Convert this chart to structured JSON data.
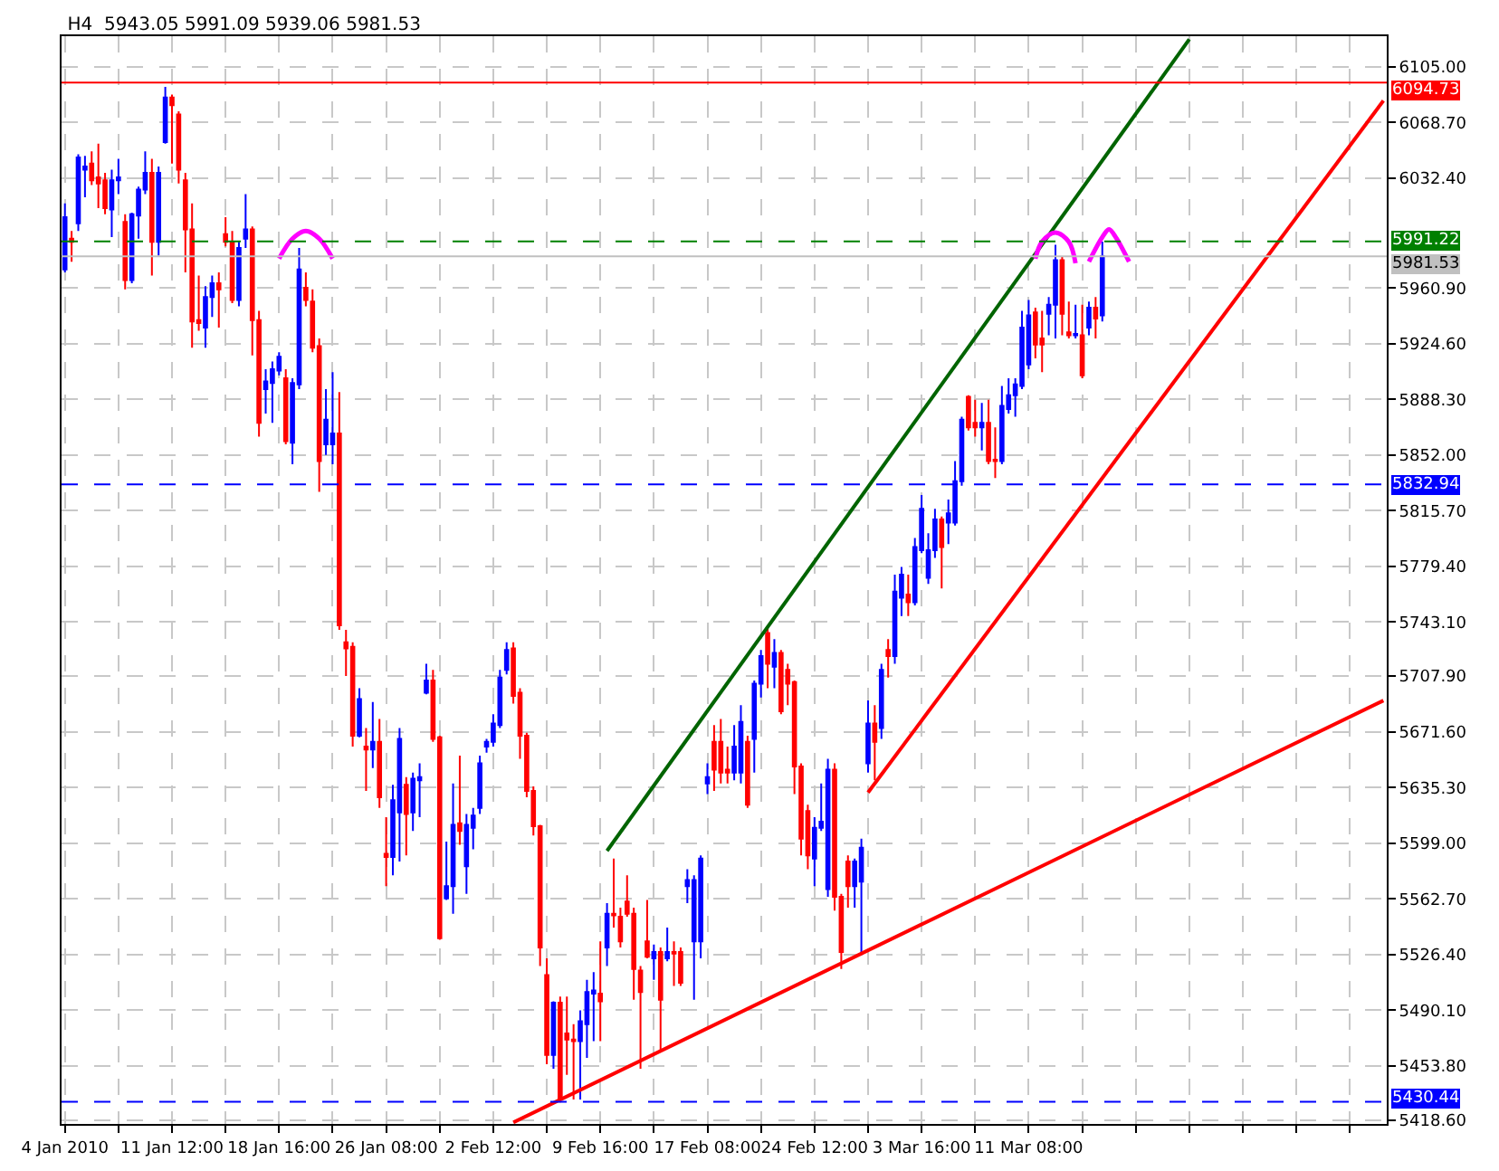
{
  "chart_data": {
    "type": "candlestick",
    "title": "H4  5943.05 5991.09 5939.06 5981.53",
    "categories": [
      "4 Jan 2010",
      null,
      null,
      null,
      null,
      null,
      null,
      null,
      null,
      null,
      null,
      null,
      null,
      null,
      null,
      null,
      "11 Jan 12:00",
      null,
      null,
      null,
      null,
      null,
      null,
      null,
      null,
      null,
      null,
      null,
      null,
      null,
      null,
      null,
      "18 Jan 16:00",
      null,
      null,
      null,
      null,
      null,
      null,
      null,
      null,
      null,
      null,
      null,
      null,
      null,
      null,
      null,
      "26 Jan 08:00",
      null,
      null,
      null,
      null,
      null,
      null,
      null,
      null,
      null,
      null,
      null,
      null,
      null,
      null,
      null,
      "2 Feb 12:00",
      null,
      null,
      null,
      null,
      null,
      null,
      null,
      null,
      null,
      null,
      null,
      null,
      null,
      null,
      null,
      "9 Feb 16:00",
      null,
      null,
      null,
      null,
      null,
      null,
      null,
      null,
      null,
      null,
      null,
      null,
      null,
      null,
      null,
      "17 Feb 08:00",
      null,
      null,
      null,
      null,
      null,
      null,
      null,
      null,
      null,
      null,
      null,
      null,
      null,
      null,
      null,
      "24 Feb 12:00",
      null,
      null,
      null,
      null,
      null,
      null,
      null,
      null,
      null,
      null,
      null,
      null,
      null,
      null,
      null,
      "3 Mar 16:00",
      null,
      null,
      null,
      null,
      null,
      null,
      null,
      null,
      null,
      null,
      null,
      null,
      null,
      null,
      null,
      "11 Mar 08:00",
      null,
      null,
      null,
      null,
      null,
      null,
      null,
      null,
      null,
      null,
      null,
      null,
      null,
      null,
      null,
      null,
      null,
      null,
      null,
      null,
      null,
      null,
      null,
      null,
      null,
      null,
      null,
      null,
      null,
      null,
      null,
      null,
      null,
      null,
      null,
      null,
      null,
      null,
      null,
      null,
      null,
      null,
      null,
      null,
      null,
      null,
      null,
      null,
      null,
      null,
      null,
      null,
      null
    ],
    "ohlc": [
      [
        5973,
        6016,
        5971,
        6007
      ],
      [
        5993,
        5998,
        5978,
        5991
      ],
      [
        6003,
        6048,
        5998,
        6046
      ],
      [
        6038,
        6047,
        6020,
        6040
      ],
      [
        6042,
        6050,
        6028,
        6031
      ],
      [
        6033,
        6055,
        6013,
        6029
      ],
      [
        6031,
        6036,
        6009,
        6013
      ],
      [
        6012,
        6038,
        5994,
        6031
      ],
      [
        6031,
        6045,
        6022,
        6033
      ],
      [
        6004,
        6009,
        5960,
        5966
      ],
      [
        5966,
        6010,
        5964,
        6009
      ],
      [
        6008,
        6027,
        5993,
        6025
      ],
      [
        6025,
        6050,
        6022,
        6036
      ],
      [
        6036,
        6045,
        5969,
        5991
      ],
      [
        5991,
        6040,
        5982,
        6036
      ],
      [
        6056,
        6092,
        6055,
        6085
      ],
      [
        6085,
        6087,
        6042,
        6080
      ],
      [
        6074,
        6076,
        6029,
        6038
      ],
      [
        6031,
        6036,
        5971,
        5999
      ],
      [
        5999,
        6016,
        5922,
        5939
      ],
      [
        5940,
        5969,
        5933,
        5938
      ],
      [
        5935,
        5962,
        5922,
        5955
      ],
      [
        5955,
        5969,
        5942,
        5964
      ],
      [
        5964,
        5971,
        5935,
        5960
      ],
      [
        5996,
        6007,
        5988,
        5991
      ],
      [
        5991,
        5998,
        5951,
        5953
      ],
      [
        5953,
        5991,
        5949,
        5987
      ],
      [
        5993,
        6022,
        5987,
        5999
      ],
      [
        5999,
        6001,
        5917,
        5940
      ],
      [
        5940,
        5946,
        5864,
        5873
      ],
      [
        5895,
        5908,
        5879,
        5900
      ],
      [
        5899,
        5913,
        5873,
        5908
      ],
      [
        5907,
        5919,
        5904,
        5916
      ],
      [
        5902,
        5908,
        5859,
        5861
      ],
      [
        5860,
        5902,
        5846,
        5899
      ],
      [
        5898,
        5987,
        5895,
        5973
      ],
      [
        5961,
        5971,
        5949,
        5953
      ],
      [
        5952,
        5960,
        5919,
        5922
      ],
      [
        5923,
        5928,
        5828,
        5848
      ],
      [
        5859,
        5895,
        5852,
        5875
      ],
      [
        5859,
        5906,
        5846,
        5866
      ],
      [
        5866,
        5893,
        5738,
        5741
      ],
      [
        5730,
        5738,
        5708,
        5726
      ],
      [
        5727,
        5730,
        5662,
        5669
      ],
      [
        5669,
        5700,
        5668,
        5693
      ],
      [
        5662,
        5674,
        5633,
        5660
      ],
      [
        5660,
        5691,
        5648,
        5665
      ],
      [
        5665,
        5680,
        5622,
        5629
      ],
      [
        5592,
        5616,
        5571,
        5590
      ],
      [
        5590,
        5637,
        5578,
        5627
      ],
      [
        5619,
        5674,
        5587,
        5667
      ],
      [
        5637,
        5642,
        5591,
        5618
      ],
      [
        5619,
        5645,
        5607,
        5641
      ],
      [
        5640,
        5651,
        5616,
        5642
      ],
      [
        5697,
        5716,
        5696,
        5705
      ],
      [
        5705,
        5712,
        5665,
        5667
      ],
      [
        5668,
        5669,
        5536,
        5537
      ],
      [
        5563,
        5600,
        5562,
        5571
      ],
      [
        5571,
        5638,
        5553,
        5611
      ],
      [
        5612,
        5656,
        5598,
        5607
      ],
      [
        5584,
        5618,
        5566,
        5611
      ],
      [
        5609,
        5622,
        5595,
        5617
      ],
      [
        5622,
        5656,
        5618,
        5651
      ],
      [
        5662,
        5667,
        5658,
        5665
      ],
      [
        5665,
        5683,
        5662,
        5677
      ],
      [
        5676,
        5712,
        5674,
        5707
      ],
      [
        5712,
        5730,
        5709,
        5725
      ],
      [
        5726,
        5730,
        5690,
        5695
      ],
      [
        5697,
        5700,
        5654,
        5669
      ],
      [
        5669,
        5671,
        5629,
        5633
      ],
      [
        5633,
        5636,
        5604,
        5610
      ],
      [
        5610,
        5611,
        5519,
        5531
      ],
      [
        5513,
        5524,
        5455,
        5461
      ],
      [
        5461,
        5496,
        5452,
        5495
      ],
      [
        5495,
        5499,
        5430,
        5432
      ],
      [
        5475,
        5499,
        5448,
        5471
      ],
      [
        5471,
        5481,
        5432,
        5470
      ],
      [
        5470,
        5490,
        5432,
        5483
      ],
      [
        5481,
        5510,
        5459,
        5502
      ],
      [
        5501,
        5515,
        5470,
        5503
      ],
      [
        5501,
        5535,
        5470,
        5496
      ],
      [
        5531,
        5560,
        5519,
        5553
      ],
      [
        5553,
        5589,
        5544,
        5552
      ],
      [
        5551,
        5557,
        5531,
        5535
      ],
      [
        5561,
        5578,
        5551,
        5553
      ],
      [
        5553,
        5557,
        5497,
        5517
      ],
      [
        5516,
        5519,
        5452,
        5502
      ],
      [
        5535,
        5562,
        5524,
        5525
      ],
      [
        5524,
        5533,
        5510,
        5528
      ],
      [
        5528,
        5531,
        5464,
        5497
      ],
      [
        5524,
        5544,
        5522,
        5528
      ],
      [
        5528,
        5535,
        5506,
        5527
      ],
      [
        5528,
        5531,
        5506,
        5508
      ],
      [
        5571,
        5582,
        5560,
        5575
      ],
      [
        5535,
        5578,
        5497,
        5575
      ],
      [
        5535,
        5591,
        5524,
        5589
      ],
      [
        5638,
        5651,
        5631,
        5642
      ],
      [
        5665,
        5676,
        5633,
        5647
      ],
      [
        5665,
        5680,
        5638,
        5645
      ],
      [
        5647,
        5662,
        5638,
        5645
      ],
      [
        5645,
        5676,
        5640,
        5662
      ],
      [
        5645,
        5689,
        5638,
        5678
      ],
      [
        5665,
        5669,
        5622,
        5624
      ],
      [
        5667,
        5705,
        5645,
        5703
      ],
      [
        5703,
        5725,
        5694,
        5721
      ],
      [
        5736,
        5741,
        5700,
        5716
      ],
      [
        5714,
        5732,
        5700,
        5723
      ],
      [
        5723,
        5725,
        5683,
        5685
      ],
      [
        5712,
        5716,
        5689,
        5703
      ],
      [
        5704,
        5705,
        5631,
        5649
      ],
      [
        5649,
        5651,
        5591,
        5602
      ],
      [
        5620,
        5624,
        5582,
        5591
      ],
      [
        5589,
        5616,
        5571,
        5609
      ],
      [
        5609,
        5638,
        5607,
        5613
      ],
      [
        5569,
        5654,
        5564,
        5647
      ],
      [
        5647,
        5651,
        5555,
        5564
      ],
      [
        5564,
        5566,
        5517,
        5528
      ],
      [
        5587,
        5591,
        5557,
        5571
      ],
      [
        5571,
        5589,
        5557,
        5587
      ],
      [
        5574,
        5602,
        5526,
        5596
      ],
      [
        5651,
        5692,
        5645,
        5677
      ],
      [
        5677,
        5689,
        5640,
        5665
      ],
      [
        5674,
        5716,
        5667,
        5712
      ],
      [
        5725,
        5732,
        5707,
        5721
      ],
      [
        5721,
        5774,
        5716,
        5763
      ],
      [
        5759,
        5779,
        5747,
        5774
      ],
      [
        5761,
        5774,
        5747,
        5756
      ],
      [
        5756,
        5798,
        5754,
        5792
      ],
      [
        5790,
        5826,
        5788,
        5817
      ],
      [
        5772,
        5801,
        5768,
        5790
      ],
      [
        5790,
        5817,
        5785,
        5810
      ],
      [
        5810,
        5812,
        5765,
        5792
      ],
      [
        5808,
        5823,
        5794,
        5814
      ],
      [
        5808,
        5848,
        5806,
        5835
      ],
      [
        5835,
        5877,
        5832,
        5875
      ],
      [
        5890,
        5891,
        5868,
        5870
      ],
      [
        5873,
        5888,
        5864,
        5870
      ],
      [
        5870,
        5886,
        5855,
        5873
      ],
      [
        5873,
        5888,
        5846,
        5848
      ],
      [
        5849,
        5870,
        5837,
        5848
      ],
      [
        5848,
        5897,
        5846,
        5884
      ],
      [
        5882,
        5902,
        5879,
        5891
      ],
      [
        5891,
        5902,
        5877,
        5898
      ],
      [
        5897,
        5946,
        5895,
        5935
      ],
      [
        5911,
        5953,
        5908,
        5943
      ],
      [
        5945,
        5948,
        5915,
        5924
      ],
      [
        5928,
        5946,
        5906,
        5924
      ],
      [
        5944,
        5955,
        5930,
        5950
      ],
      [
        5950,
        5989,
        5928,
        5979
      ],
      [
        5979,
        5981,
        5930,
        5944
      ],
      [
        5932,
        5952,
        5928,
        5930
      ],
      [
        5930,
        5950,
        5928,
        5931
      ],
      [
        5930,
        5950,
        5902,
        5904
      ],
      [
        5935,
        5952,
        5930,
        5948
      ],
      [
        5948,
        5955,
        5928,
        5941
      ],
      [
        5943.05,
        5991.09,
        5939.06,
        5981.53
      ],
      null,
      null,
      null,
      null,
      null,
      null,
      null,
      null,
      null,
      null,
      null,
      null,
      null,
      null,
      null,
      null,
      null,
      null,
      null,
      null,
      null,
      null,
      null,
      null,
      null,
      null,
      null,
      null,
      null,
      null,
      null,
      null,
      null,
      null,
      null,
      null,
      null,
      null,
      null,
      null,
      null,
      null
    ],
    "colors": [
      "#0000ff",
      "#ff0000",
      "#0000ff",
      "#0000ff",
      "#ff0000",
      "#ff0000",
      "#ff0000",
      "#0000ff",
      "#0000ff",
      "#ff0000",
      "#0000ff",
      "#0000ff",
      "#0000ff",
      "#ff0000",
      "#0000ff",
      "#0000ff",
      "#ff0000",
      "#ff0000",
      "#ff0000",
      "#ff0000",
      "#ff0000",
      "#0000ff",
      "#0000ff",
      "#ff0000",
      "#ff0000",
      "#ff0000",
      "#0000ff",
      "#0000ff",
      "#ff0000",
      "#ff0000",
      "#0000ff",
      "#0000ff",
      "#0000ff",
      "#ff0000",
      "#0000ff",
      "#0000ff",
      "#ff0000",
      "#ff0000",
      "#ff0000",
      "#0000ff",
      "#0000ff",
      "#ff0000",
      "#ff0000",
      "#ff0000",
      "#0000ff",
      "#ff0000",
      "#0000ff",
      "#ff0000",
      "#ff0000",
      "#0000ff",
      "#0000ff",
      "#ff0000",
      "#0000ff",
      "#0000ff",
      "#0000ff",
      "#ff0000",
      "#ff0000",
      "#0000ff",
      "#0000ff",
      "#ff0000",
      "#0000ff",
      "#0000ff",
      "#0000ff",
      "#0000ff",
      "#0000ff",
      "#0000ff",
      "#0000ff",
      "#ff0000",
      "#ff0000",
      "#ff0000",
      "#ff0000",
      "#ff0000",
      "#ff0000",
      "#0000ff",
      "#ff0000",
      "#ff0000",
      "#ff0000",
      "#0000ff",
      "#0000ff",
      "#0000ff",
      "#ff0000",
      "#0000ff",
      "#ff0000",
      "#ff0000",
      "#ff0000",
      "#ff0000",
      "#ff0000",
      "#ff0000",
      "#0000ff",
      "#ff0000",
      "#0000ff",
      "#ff0000",
      "#ff0000",
      "#0000ff",
      "#0000ff",
      "#0000ff",
      "#0000ff",
      "#ff0000",
      "#ff0000",
      "#ff0000",
      "#0000ff",
      "#0000ff",
      "#ff0000",
      "#0000ff",
      "#0000ff",
      "#ff0000",
      "#0000ff",
      "#ff0000",
      "#ff0000",
      "#ff0000",
      "#ff0000",
      "#ff0000",
      "#0000ff",
      "#0000ff",
      "#0000ff",
      "#ff0000",
      "#ff0000",
      "#ff0000",
      "#0000ff",
      "#0000ff",
      "#0000ff",
      "#ff0000",
      "#0000ff",
      "#ff0000",
      "#0000ff",
      "#0000ff",
      "#ff0000",
      "#0000ff",
      "#0000ff",
      "#0000ff",
      "#0000ff",
      "#ff0000",
      "#0000ff",
      "#0000ff",
      "#0000ff",
      "#ff0000",
      "#ff0000",
      "#0000ff",
      "#ff0000",
      "#ff0000",
      "#0000ff",
      "#0000ff",
      "#0000ff",
      "#0000ff",
      "#0000ff",
      "#ff0000",
      "#ff0000",
      "#0000ff",
      "#0000ff",
      "#ff0000",
      "#ff0000",
      "#0000ff",
      "#ff0000",
      "#0000ff",
      "#ff0000",
      "#0000ff",
      null,
      null,
      null,
      null,
      null,
      null,
      null,
      null,
      null,
      null,
      null,
      null,
      null,
      null,
      null,
      null,
      null,
      null,
      null,
      null,
      null,
      null,
      null,
      null,
      null,
      null,
      null,
      null,
      null,
      null,
      null,
      null,
      null,
      null,
      null,
      null,
      null,
      null,
      null,
      null,
      null,
      null
    ],
    "series": [
      {
        "type": "line",
        "color": "#006400",
        "values": [
          null,
          null,
          null,
          null,
          null,
          null,
          null,
          null,
          null,
          null,
          null,
          null,
          null,
          null,
          null,
          null,
          null,
          null,
          null,
          null,
          null,
          null,
          null,
          null,
          null,
          null,
          null,
          null,
          null,
          null,
          null,
          null,
          null,
          null,
          null,
          null,
          null,
          null,
          null,
          null,
          null,
          null,
          null,
          null,
          null,
          null,
          null,
          null,
          null,
          null,
          null,
          null,
          null,
          null,
          null,
          null,
          null,
          null,
          null,
          null,
          null,
          null,
          null,
          null,
          null,
          null,
          null,
          null,
          null,
          null,
          null,
          null,
          null,
          null,
          null,
          null,
          null,
          null,
          null,
          null,
          null,
          5594,
          null,
          null,
          null,
          null,
          null,
          null,
          null,
          null,
          null,
          null,
          null,
          null,
          null,
          null,
          null,
          null,
          null,
          null,
          null,
          null,
          null,
          null,
          null,
          null,
          null,
          null,
          null,
          null,
          null,
          null,
          null,
          null,
          null,
          null,
          null,
          null,
          null,
          null,
          null,
          null,
          null,
          null,
          null,
          null,
          null,
          null,
          null,
          null,
          null,
          null,
          null,
          null,
          null,
          null,
          null,
          null,
          null,
          null,
          null,
          null,
          null,
          null,
          null,
          null,
          null,
          null,
          null,
          null,
          null,
          null,
          null,
          null,
          null,
          null,
          null,
          null,
          null,
          null,
          null,
          null,
          null,
          null,
          null,
          null,
          null,
          null,
          6123,
          null,
          null,
          null,
          null,
          null,
          null,
          null,
          null,
          null,
          null,
          null,
          null,
          null,
          null,
          null,
          null,
          null,
          null,
          null,
          null,
          null,
          null,
          null,
          null,
          null,
          null,
          null,
          null,
          null
        ]
      },
      {
        "type": "line",
        "color": "#ff0000",
        "values": [
          null,
          null,
          null,
          null,
          null,
          null,
          null,
          null,
          null,
          null,
          null,
          null,
          null,
          null,
          null,
          null,
          null,
          null,
          null,
          null,
          null,
          null,
          null,
          null,
          null,
          null,
          null,
          null,
          null,
          null,
          null,
          null,
          null,
          null,
          null,
          null,
          null,
          null,
          null,
          null,
          null,
          null,
          null,
          null,
          null,
          null,
          null,
          null,
          null,
          null,
          null,
          null,
          null,
          null,
          null,
          null,
          null,
          null,
          null,
          null,
          null,
          null,
          null,
          null,
          null,
          null,
          null,
          null,
          null,
          null,
          null,
          null,
          null,
          null,
          null,
          null,
          null,
          null,
          null,
          null,
          null,
          null,
          null,
          null,
          null,
          null,
          null,
          null,
          null,
          null,
          null,
          null,
          null,
          null,
          null,
          null,
          null,
          null,
          null,
          null,
          null,
          null,
          null,
          null,
          null,
          null,
          null,
          null,
          null,
          null,
          null,
          null,
          null,
          null,
          null,
          null,
          null,
          null,
          null,
          null,
          5632,
          null,
          null,
          null,
          null,
          null,
          null,
          null,
          null,
          null,
          null,
          null,
          null,
          null,
          null,
          null,
          null,
          null,
          null,
          null,
          null,
          null,
          null,
          null,
          null,
          null,
          null,
          null,
          null,
          null,
          null,
          null,
          null,
          null,
          null,
          null,
          null,
          null,
          null,
          null,
          null,
          null,
          null,
          null,
          null,
          null,
          null,
          null,
          null,
          null,
          null,
          null,
          null,
          null,
          null,
          null,
          null,
          null,
          null,
          null,
          null,
          null,
          null,
          null,
          null,
          null,
          null,
          null,
          null,
          null,
          null,
          null,
          null,
          null,
          null,
          null,
          null,
          6083
        ]
      },
      {
        "type": "line",
        "color": "#ff0000",
        "values": [
          null,
          null,
          null,
          null,
          null,
          null,
          null,
          null,
          null,
          null,
          null,
          null,
          null,
          null,
          null,
          null,
          null,
          null,
          null,
          null,
          null,
          null,
          null,
          null,
          null,
          null,
          null,
          null,
          null,
          null,
          null,
          null,
          null,
          null,
          null,
          null,
          null,
          null,
          null,
          null,
          null,
          null,
          null,
          null,
          null,
          null,
          null,
          null,
          null,
          null,
          null,
          null,
          null,
          null,
          null,
          null,
          null,
          null,
          null,
          null,
          null,
          null,
          null,
          null,
          null,
          null,
          null,
          5417,
          null,
          null,
          null,
          null,
          null,
          null,
          null,
          null,
          null,
          null,
          null,
          null,
          null,
          null,
          null,
          null,
          null,
          null,
          null,
          null,
          null,
          null,
          null,
          null,
          null,
          null,
          null,
          null,
          null,
          null,
          null,
          null,
          null,
          null,
          null,
          null,
          null,
          null,
          null,
          null,
          null,
          null,
          null,
          null,
          null,
          null,
          null,
          null,
          null,
          null,
          null,
          null,
          null,
          null,
          null,
          null,
          null,
          null,
          null,
          null,
          null,
          null,
          null,
          null,
          null,
          null,
          null,
          null,
          null,
          null,
          null,
          null,
          null,
          null,
          null,
          null,
          null,
          null,
          null,
          null,
          null,
          null,
          null,
          null,
          null,
          null,
          null,
          null,
          null,
          null,
          null,
          null,
          null,
          null,
          null,
          null,
          null,
          null,
          null,
          null,
          null,
          null,
          null,
          null,
          null,
          null,
          null,
          null,
          null,
          null,
          null,
          null,
          null,
          null,
          null,
          null,
          null,
          null,
          null,
          null,
          null,
          null,
          null,
          null,
          null,
          null,
          null,
          null,
          null,
          5692
        ]
      },
      {
        "type": "line",
        "color": "#ff00ff",
        "values": [
          null,
          null,
          null,
          null,
          null,
          null,
          null,
          null,
          null,
          null,
          null,
          null,
          null,
          null,
          null,
          null,
          null,
          null,
          null,
          null,
          null,
          null,
          null,
          null,
          null,
          null,
          null,
          null,
          null,
          null,
          null,
          null,
          5980,
          null,
          5993,
          null,
          5998,
          null,
          5993,
          null,
          5980,
          null,
          null,
          null,
          null,
          null,
          null,
          null,
          null,
          null,
          null,
          null,
          null,
          null,
          null,
          null,
          null,
          null,
          null,
          null,
          null,
          null,
          null,
          null,
          null,
          null,
          null,
          null,
          null,
          null,
          null,
          null,
          null,
          null,
          null,
          null,
          null,
          null,
          null,
          null,
          null,
          null,
          null,
          null,
          null,
          null,
          null,
          null,
          null,
          null,
          null,
          null,
          null,
          null,
          null,
          null,
          null,
          null,
          null,
          null,
          null,
          null,
          null,
          null,
          null,
          null,
          null,
          null,
          null,
          null,
          null,
          null,
          null,
          null,
          null,
          null,
          null,
          null,
          null,
          null,
          null,
          null,
          null,
          null,
          null,
          null,
          null,
          null,
          null,
          null,
          null,
          null,
          null,
          null,
          null,
          null,
          null,
          null,
          null,
          null,
          null,
          null,
          null,
          null,
          null,
          null,
          null,
          null,
          null,
          null,
          null,
          null,
          null,
          null,
          null,
          null,
          null,
          null,
          null,
          null,
          null,
          null,
          null,
          null,
          null,
          null,
          null,
          null,
          null,
          null,
          null,
          null,
          null,
          null,
          null,
          null,
          null,
          null,
          null,
          null,
          null,
          null,
          null,
          null,
          null,
          null,
          null,
          null,
          null,
          null,
          null,
          null,
          null,
          null,
          null,
          null,
          null,
          null
        ]
      },
      {
        "type": "line",
        "color": "#ff00ff",
        "values": [
          null,
          null,
          null,
          null,
          null,
          null,
          null,
          null,
          null,
          null,
          null,
          null,
          null,
          null,
          null,
          null,
          null,
          null,
          null,
          null,
          null,
          null,
          null,
          null,
          null,
          null,
          null,
          null,
          null,
          null,
          null,
          null,
          null,
          null,
          null,
          null,
          null,
          null,
          null,
          null,
          null,
          null,
          null,
          null,
          null,
          null,
          null,
          null,
          null,
          null,
          null,
          null,
          null,
          null,
          null,
          null,
          null,
          null,
          null,
          null,
          null,
          null,
          null,
          null,
          null,
          null,
          null,
          null,
          null,
          null,
          null,
          null,
          null,
          null,
          null,
          null,
          null,
          null,
          null,
          null,
          null,
          null,
          null,
          null,
          null,
          null,
          null,
          null,
          null,
          null,
          null,
          null,
          null,
          null,
          null,
          null,
          null,
          null,
          null,
          null,
          null,
          null,
          null,
          null,
          null,
          null,
          null,
          null,
          null,
          null,
          null,
          null,
          null,
          null,
          null,
          null,
          null,
          null,
          null,
          null,
          null,
          null,
          null,
          null,
          null,
          null,
          null,
          null,
          null,
          null,
          null,
          null,
          null,
          null,
          null,
          null,
          null,
          null,
          null,
          null,
          null,
          null,
          null,
          null,
          null,
          5980,
          5991,
          null,
          5997,
          null,
          5991,
          5977,
          null,
          null,
          null,
          null,
          null,
          null,
          null,
          null,
          null,
          null,
          null,
          null,
          null,
          null,
          null,
          null,
          null,
          null,
          null,
          null,
          null,
          null,
          null,
          null,
          null,
          null,
          null,
          null,
          null,
          null,
          null,
          null,
          null,
          null,
          null,
          null,
          null,
          null,
          null,
          null,
          null,
          null,
          null,
          null,
          null,
          null
        ]
      },
      {
        "type": "line",
        "color": "#ff00ff",
        "values": [
          null,
          null,
          null,
          null,
          null,
          null,
          null,
          null,
          null,
          null,
          null,
          null,
          null,
          null,
          null,
          null,
          null,
          null,
          null,
          null,
          null,
          null,
          null,
          null,
          null,
          null,
          null,
          null,
          null,
          null,
          null,
          null,
          null,
          null,
          null,
          null,
          null,
          null,
          null,
          null,
          null,
          null,
          null,
          null,
          null,
          null,
          null,
          null,
          null,
          null,
          null,
          null,
          null,
          null,
          null,
          null,
          null,
          null,
          null,
          null,
          null,
          null,
          null,
          null,
          null,
          null,
          null,
          null,
          null,
          null,
          null,
          null,
          null,
          null,
          null,
          null,
          null,
          null,
          null,
          null,
          null,
          null,
          null,
          null,
          null,
          null,
          null,
          null,
          null,
          null,
          null,
          null,
          null,
          null,
          null,
          null,
          null,
          null,
          null,
          null,
          null,
          null,
          null,
          null,
          null,
          null,
          null,
          null,
          null,
          null,
          null,
          null,
          null,
          null,
          null,
          null,
          null,
          null,
          null,
          null,
          null,
          null,
          null,
          null,
          null,
          null,
          null,
          null,
          null,
          null,
          null,
          null,
          null,
          null,
          null,
          null,
          null,
          null,
          null,
          null,
          null,
          null,
          null,
          null,
          null,
          null,
          null,
          null,
          null,
          null,
          null,
          null,
          null,
          5978,
          null,
          5994,
          5999,
          5994,
          null,
          5978,
          null,
          null,
          null,
          null,
          null,
          null,
          null,
          null,
          null,
          null,
          null,
          null,
          null,
          null,
          null,
          null,
          null,
          null,
          null,
          null,
          null,
          null,
          null,
          null,
          null,
          null,
          null,
          null,
          null,
          null,
          null,
          null,
          null,
          null,
          null,
          null,
          null,
          null
        ]
      }
    ],
    "ylim": [
      5416,
      6125
    ],
    "yticks": [
      {
        "value": 6105,
        "label": "6105.00"
      },
      {
        "value": 6068.7,
        "label": "6068.70"
      },
      {
        "value": 6032.4,
        "label": "6032.40"
      },
      {
        "value": 5960.9,
        "label": "5960.90"
      },
      {
        "value": 5924.6,
        "label": "5924.60"
      },
      {
        "value": 5888.3,
        "label": "5888.30"
      },
      {
        "value": 5852,
        "label": "5852.00"
      },
      {
        "value": 5815.7,
        "label": "5815.70"
      },
      {
        "value": 5779.4,
        "label": "5779.40"
      },
      {
        "value": 5743.1,
        "label": "5743.10"
      },
      {
        "value": 5707.9,
        "label": "5707.90"
      },
      {
        "value": 5671.6,
        "label": "5671.60"
      },
      {
        "value": 5635.3,
        "label": "5635.30"
      },
      {
        "value": 5599,
        "label": "5599.00"
      },
      {
        "value": 5562.7,
        "label": "5562.70"
      },
      {
        "value": 5526.4,
        "label": "5526.40"
      },
      {
        "value": 5490.1,
        "label": "5490.10"
      },
      {
        "value": 5453.8,
        "label": "5453.80"
      },
      {
        "value": 5418.6,
        "label": "5418.60"
      }
    ],
    "ref_lines": [
      {
        "axis": "y",
        "value": 6094.73,
        "label": "6094.73",
        "color": "#ff0000",
        "line_style": "solid"
      },
      {
        "axis": "y",
        "value": 5991.22,
        "label": "5991.22",
        "color": "#008000",
        "line_style": "dashed"
      },
      {
        "axis": "y",
        "value": 5981.53,
        "label": "5981.53",
        "color": "#c0c0c0",
        "line_style": "solid"
      },
      {
        "axis": "y",
        "value": 5832.94,
        "label": "5832.94",
        "color": "#0000ff",
        "line_style": "dashed"
      },
      {
        "axis": "y",
        "value": 5430.44,
        "label": "5430.44",
        "color": "#0000ff",
        "line_style": "dashed"
      }
    ],
    "grid": true
  }
}
